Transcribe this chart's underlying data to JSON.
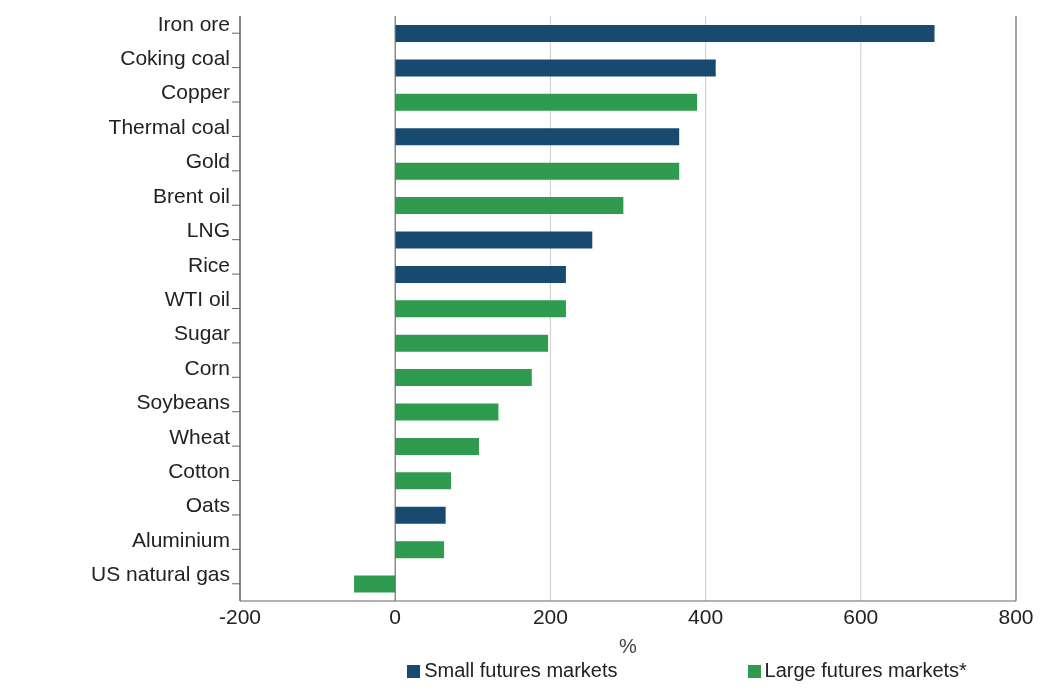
{
  "chart_data": {
    "type": "bar",
    "orientation": "horizontal",
    "xlabel": "%",
    "categories": [
      "Iron ore",
      "Coking coal",
      "Copper",
      "Thermal coal",
      "Gold",
      "Brent oil",
      "LNG",
      "Rice",
      "WTI oil",
      "Sugar",
      "Corn",
      "Soybeans",
      "Wheat",
      "Cotton",
      "Oats",
      "Aluminium",
      "US natural gas"
    ],
    "series": [
      {
        "name": "Small futures markets",
        "color": "#174a6e",
        "values": [
          695,
          413,
          null,
          366,
          null,
          null,
          254,
          220,
          null,
          null,
          null,
          null,
          null,
          null,
          65,
          null,
          null
        ]
      },
      {
        "name": "Large futures markets*",
        "color": "#2e9b4e",
        "values": [
          null,
          null,
          389,
          null,
          366,
          294,
          null,
          null,
          220,
          197,
          176,
          133,
          108,
          72,
          null,
          63,
          -53
        ]
      }
    ],
    "xlim": [
      -200,
      800
    ],
    "xticks": [
      -200,
      0,
      200,
      400,
      600,
      800
    ],
    "grid": "x",
    "legend": "bottom"
  }
}
